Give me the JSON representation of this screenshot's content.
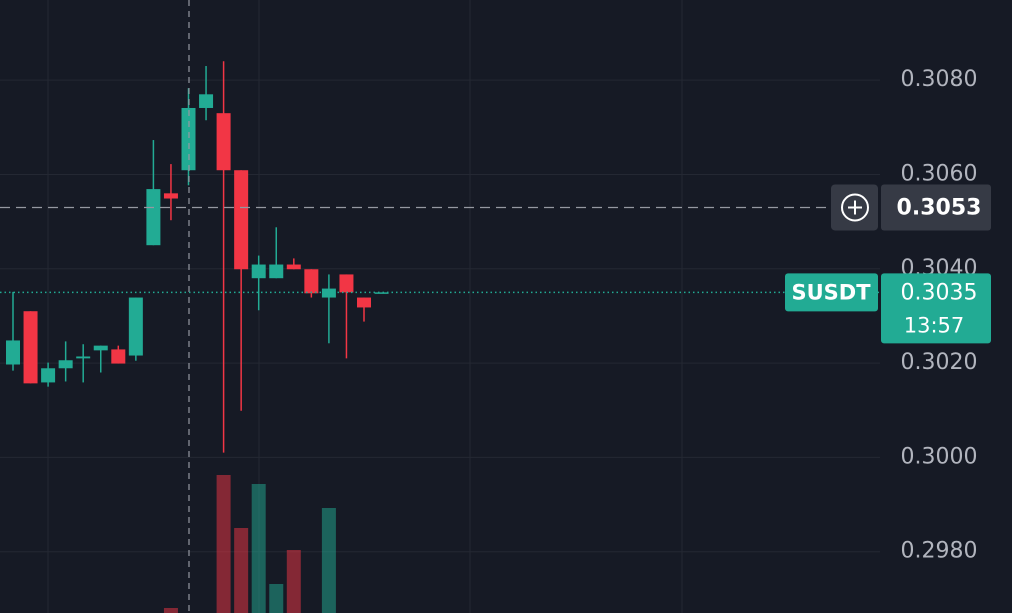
{
  "chart_data": {
    "type": "candlestick",
    "symbol": "SUSDT",
    "countdown": "13:57",
    "up_color": "#22ab94",
    "down_color": "#f23645",
    "grid": true,
    "ylim": [
      0.2967,
      0.3097
    ],
    "yticks": [
      {
        "value": 0.298,
        "label": "0.2980"
      },
      {
        "value": 0.3,
        "label": "0.3000"
      },
      {
        "value": 0.302,
        "label": "0.3020"
      },
      {
        "value": 0.304,
        "label": "0.3040"
      },
      {
        "value": 0.306,
        "label": "0.3060"
      },
      {
        "value": 0.308,
        "label": "0.3080"
      }
    ],
    "last_price": {
      "value": 0.3035,
      "label": "0.3035"
    },
    "crosshair_price": {
      "value": 0.3053,
      "label": "0.3053"
    },
    "open": [
      0.30197,
      0.3031,
      0.30159,
      0.30189,
      0.3021,
      0.30227,
      0.30229,
      0.30216,
      0.3045,
      0.3056,
      0.30609,
      0.30741,
      0.3073,
      0.30609,
      0.3038,
      0.3038,
      0.30409,
      0.30399,
      0.30339,
      0.30388,
      0.30339,
      0.3035
    ],
    "high": [
      0.30351,
      0.3031,
      0.30201,
      0.30246,
      0.3024,
      0.30237,
      0.30237,
      0.30339,
      0.30673,
      0.30622,
      0.30783,
      0.3083,
      0.3084,
      0.30609,
      0.30428,
      0.30488,
      0.30422,
      0.30399,
      0.30388,
      0.30388,
      0.30339,
      0.3035
    ],
    "low": [
      0.30184,
      0.30157,
      0.3015,
      0.30161,
      0.30159,
      0.3018,
      0.30199,
      0.30205,
      0.3045,
      0.30503,
      0.30577,
      0.30715,
      0.3001,
      0.30099,
      0.30312,
      0.3038,
      0.30399,
      0.30339,
      0.30242,
      0.3021,
      0.30288,
      0.3035
    ],
    "close": [
      0.30248,
      0.30157,
      0.30189,
      0.30206,
      0.30214,
      0.30237,
      0.30199,
      0.30339,
      0.30569,
      0.30549,
      0.30741,
      0.3077,
      0.30609,
      0.30399,
      0.30409,
      0.30409,
      0.30399,
      0.30348,
      0.30358,
      0.3035,
      0.30318,
      0.3035
    ],
    "volume": [
      0,
      0,
      0,
      0,
      0,
      0,
      0,
      0,
      0,
      5,
      0,
      0,
      138,
      85,
      129,
      29,
      63,
      0,
      105,
      0,
      0,
      0
    ]
  }
}
